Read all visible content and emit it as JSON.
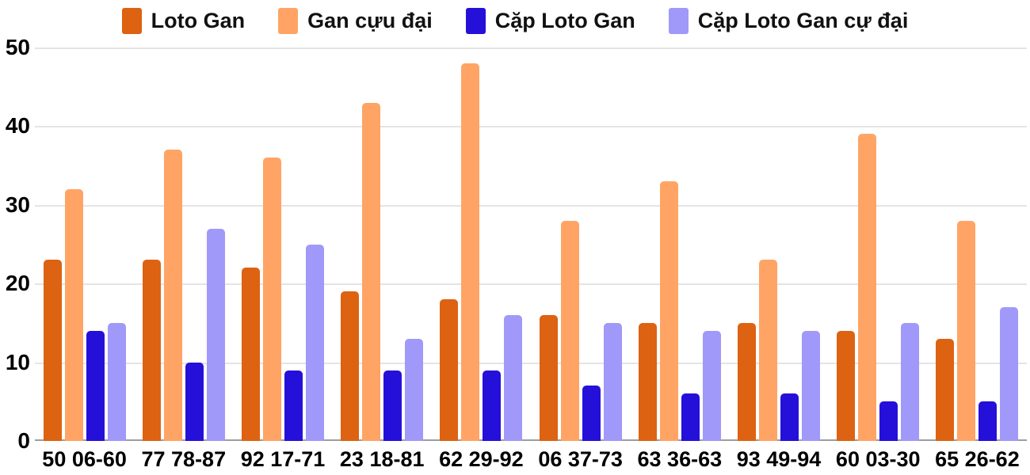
{
  "legend": {
    "items": [
      {
        "label": "Loto Gan",
        "color": "#dd6211"
      },
      {
        "label": "Gan cựu đại",
        "color": "#ffa465"
      },
      {
        "label": "Cặp Loto Gan",
        "color": "#2510da"
      },
      {
        "label": "Cặp Loto Gan cự đại",
        "color": "#a099f9"
      }
    ]
  },
  "y_axis": {
    "ticks": [
      50,
      40,
      30,
      20,
      10,
      0
    ]
  },
  "chart_data": {
    "type": "bar",
    "title": "",
    "categories": [
      "50 06-60",
      "77 78-87",
      "92 17-71",
      "23 18-81",
      "62 29-92",
      "06 37-73",
      "63 36-63",
      "93 49-94",
      "60 03-30",
      "65 26-62"
    ],
    "series": [
      {
        "name": "Loto Gan",
        "color": "#dd6211",
        "values": [
          23,
          23,
          22,
          19,
          18,
          16,
          15,
          15,
          14,
          13
        ]
      },
      {
        "name": "Gan cựu đại",
        "color": "#ffa465",
        "values": [
          32,
          37,
          36,
          43,
          48,
          28,
          33,
          23,
          39,
          28
        ]
      },
      {
        "name": "Cặp Loto Gan",
        "color": "#2510da",
        "values": [
          14,
          10,
          9,
          9,
          9,
          7,
          6,
          6,
          5,
          5
        ]
      },
      {
        "name": "Cặp Loto Gan cự đại",
        "color": "#a099f9",
        "values": [
          15,
          27,
          25,
          13,
          16,
          15,
          14,
          14,
          15,
          17
        ]
      }
    ],
    "xlabel": "",
    "ylabel": "",
    "ylim": [
      0,
      50
    ],
    "grid": true,
    "legend_position": "top",
    "background": "#ffffff",
    "gridline_color": "#e4e4e4",
    "baseline_color": "#9d9d9d"
  }
}
